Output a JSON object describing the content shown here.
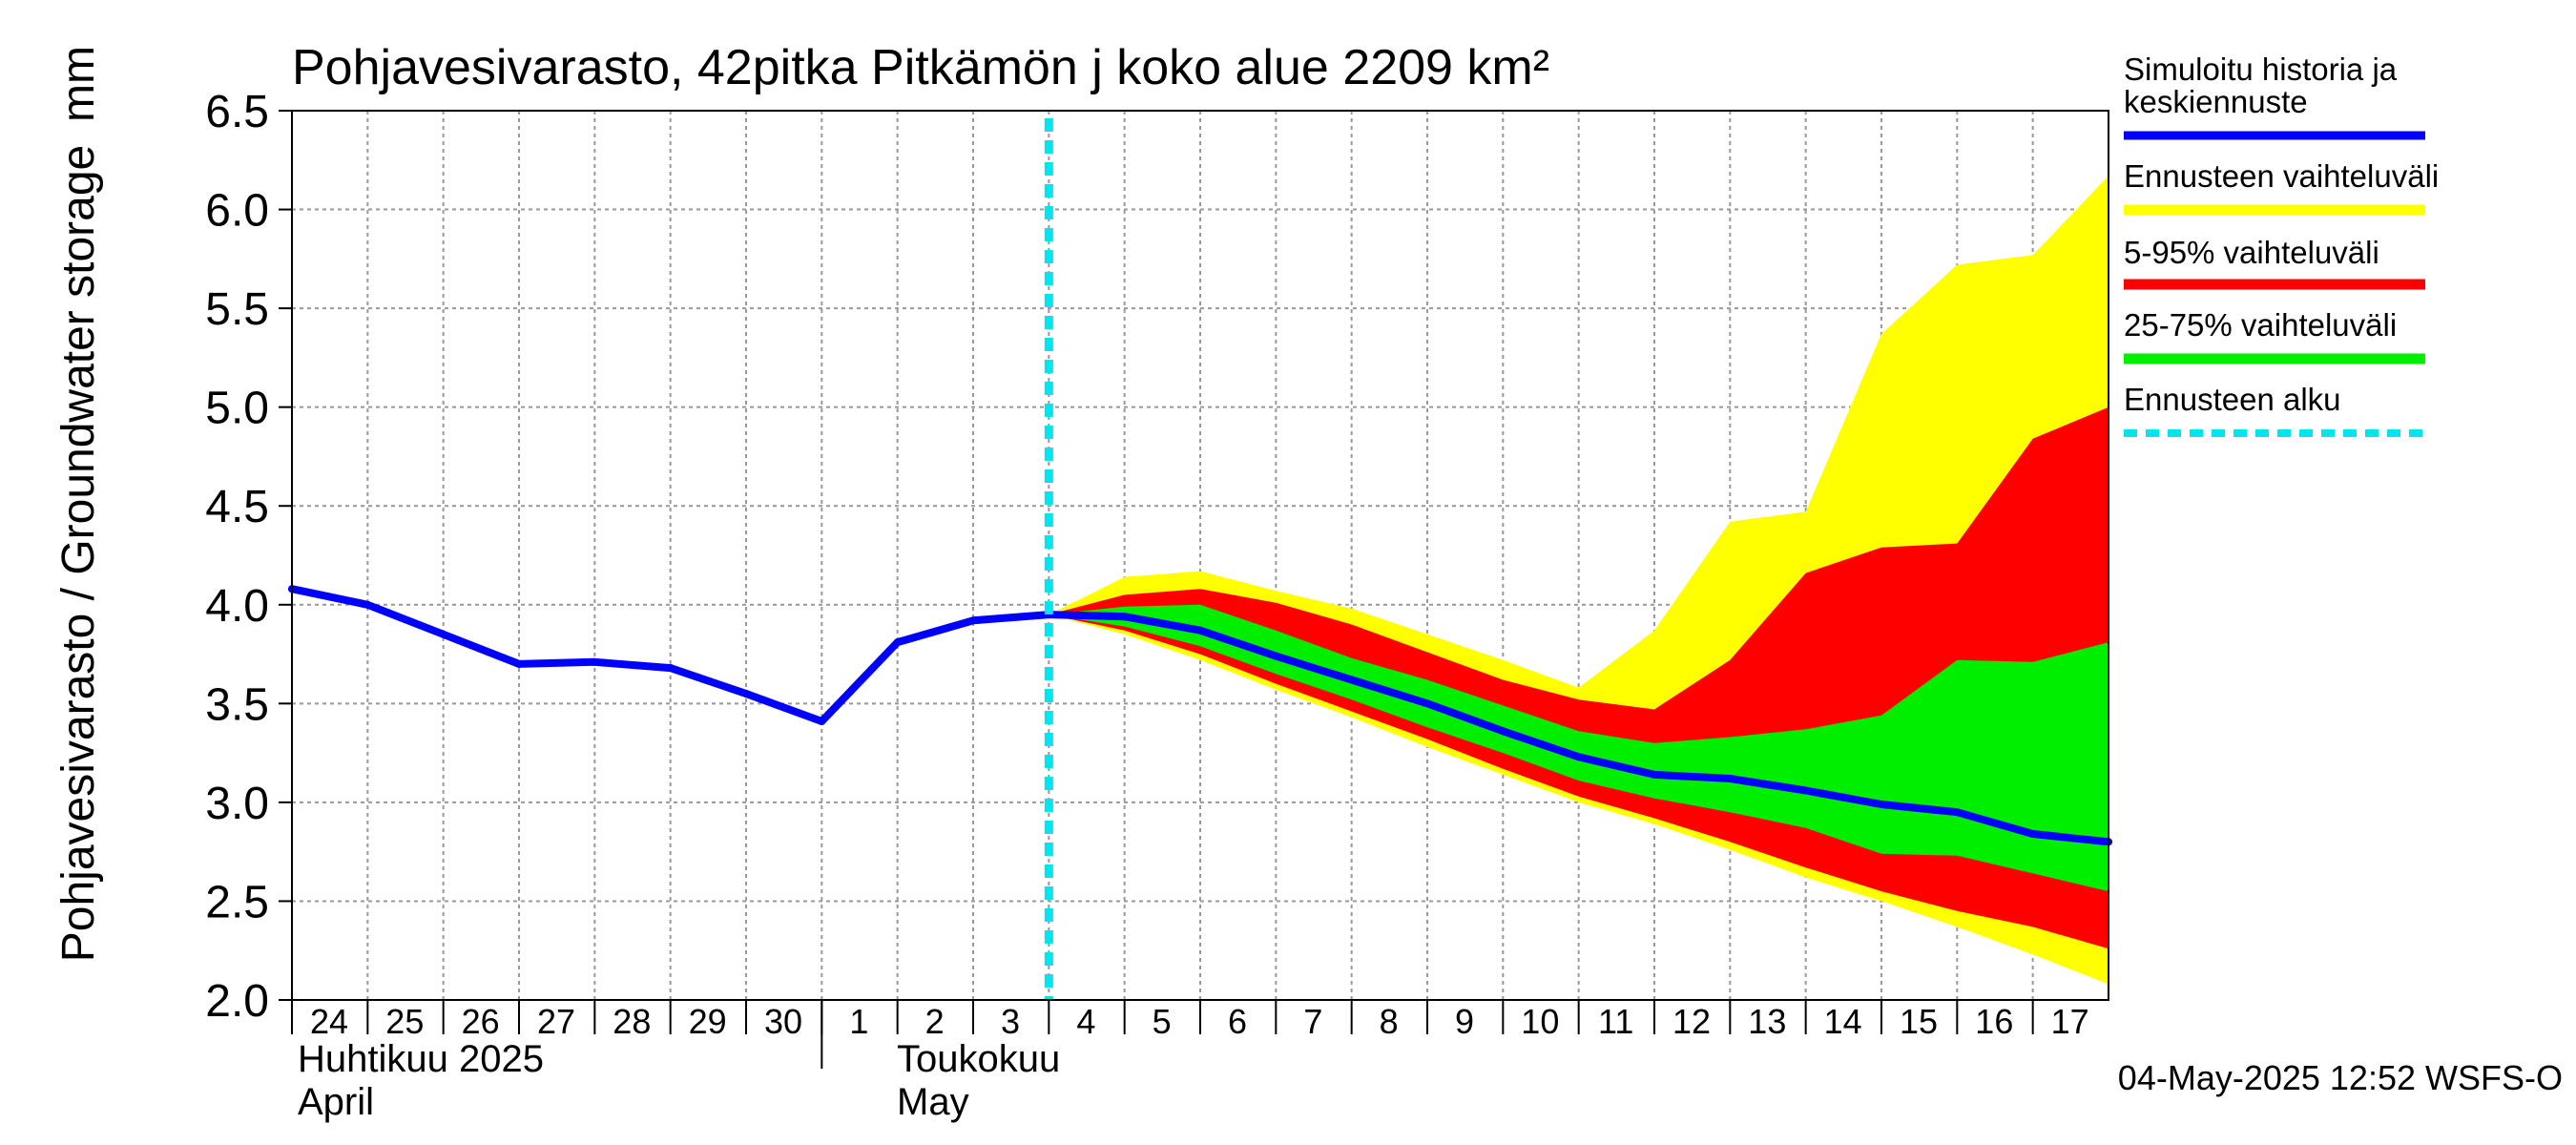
{
  "chart_data": {
    "type": "area",
    "title": "Pohjavesivarasto, 42pitka Pitkämön j koko alue 2209 km²",
    "ylabel": "Pohjavesivarasto / Groundwater storage",
    "yunit": "mm",
    "ylim": [
      2.0,
      6.5
    ],
    "yticks": [
      "2.0",
      "2.5",
      "3.0",
      "3.5",
      "4.0",
      "4.5",
      "5.0",
      "5.5",
      "6.0",
      "6.5"
    ],
    "xlim": [
      0,
      24
    ],
    "xticks": [
      "24",
      "25",
      "26",
      "27",
      "28",
      "29",
      "30",
      "1",
      "2",
      "3",
      "4",
      "5",
      "6",
      "7",
      "8",
      "9",
      "10",
      "11",
      "12",
      "13",
      "14",
      "15",
      "16",
      "17"
    ],
    "month_labels": [
      {
        "line1": "Huhtikuu  2025",
        "line2": "April"
      },
      {
        "line1": "Toukokuu",
        "line2": "May"
      }
    ],
    "forecast_start": 10,
    "history": {
      "x": [
        0,
        1,
        2,
        3,
        4,
        5,
        6,
        7,
        8,
        9,
        10
      ],
      "y": [
        4.08,
        4.0,
        3.85,
        3.7,
        3.71,
        3.68,
        3.55,
        3.41,
        3.81,
        3.92,
        3.95
      ]
    },
    "bands": {
      "x": [
        10,
        11,
        12,
        13,
        14,
        15,
        16,
        17,
        18,
        19,
        20,
        21,
        22,
        23,
        24
      ],
      "full_upper": [
        3.95,
        4.14,
        4.17,
        4.07,
        3.98,
        3.85,
        3.72,
        3.58,
        3.87,
        4.42,
        4.47,
        5.37,
        5.72,
        5.77,
        6.17
      ],
      "full_lower": [
        3.95,
        3.85,
        3.72,
        3.57,
        3.43,
        3.28,
        3.14,
        3.0,
        2.89,
        2.76,
        2.62,
        2.5,
        2.37,
        2.23,
        2.08
      ],
      "p95": [
        3.95,
        4.05,
        4.08,
        4.01,
        3.9,
        3.76,
        3.62,
        3.52,
        3.47,
        3.72,
        4.16,
        4.29,
        4.31,
        4.84,
        5.0
      ],
      "p5": [
        3.95,
        3.87,
        3.75,
        3.6,
        3.46,
        3.32,
        3.17,
        3.03,
        2.92,
        2.8,
        2.67,
        2.55,
        2.45,
        2.37,
        2.26
      ],
      "p75": [
        3.95,
        3.99,
        4.0,
        3.87,
        3.73,
        3.62,
        3.49,
        3.36,
        3.3,
        3.33,
        3.37,
        3.44,
        3.72,
        3.71,
        3.81
      ],
      "p25": [
        3.95,
        3.89,
        3.79,
        3.65,
        3.52,
        3.38,
        3.25,
        3.11,
        3.02,
        2.95,
        2.87,
        2.74,
        2.73,
        2.64,
        2.55
      ]
    },
    "median": {
      "x": [
        10,
        11,
        12,
        13,
        14,
        15,
        16,
        17,
        18,
        19,
        20,
        21,
        22,
        23,
        24
      ],
      "y": [
        3.95,
        3.94,
        3.87,
        3.74,
        3.62,
        3.5,
        3.36,
        3.23,
        3.14,
        3.12,
        3.06,
        2.99,
        2.95,
        2.84,
        2.8
      ]
    },
    "legend": [
      {
        "label": "Simuloitu historia ja keskiennuste",
        "color": "#0000ff",
        "style": "line"
      },
      {
        "label": "Ennusteen vaihteluväli",
        "color": "#ffff00",
        "style": "band"
      },
      {
        "label": "5-95% vaihteluväli",
        "color": "#ff0000",
        "style": "band"
      },
      {
        "label": "25-75% vaihteluväli",
        "color": "#00ee00",
        "style": "band"
      },
      {
        "label": "Ennusteen alku",
        "color": "#00e5ee",
        "style": "dashed"
      }
    ],
    "colors": {
      "history_line": "#0000ff",
      "full_band": "#ffff00",
      "band_90": "#ff0000",
      "band_50": "#00ee00",
      "forecast_marker": "#00e5ee",
      "grid": "#999999"
    }
  },
  "footer": {
    "timestamp": "04-May-2025 12:52 WSFS-O"
  }
}
